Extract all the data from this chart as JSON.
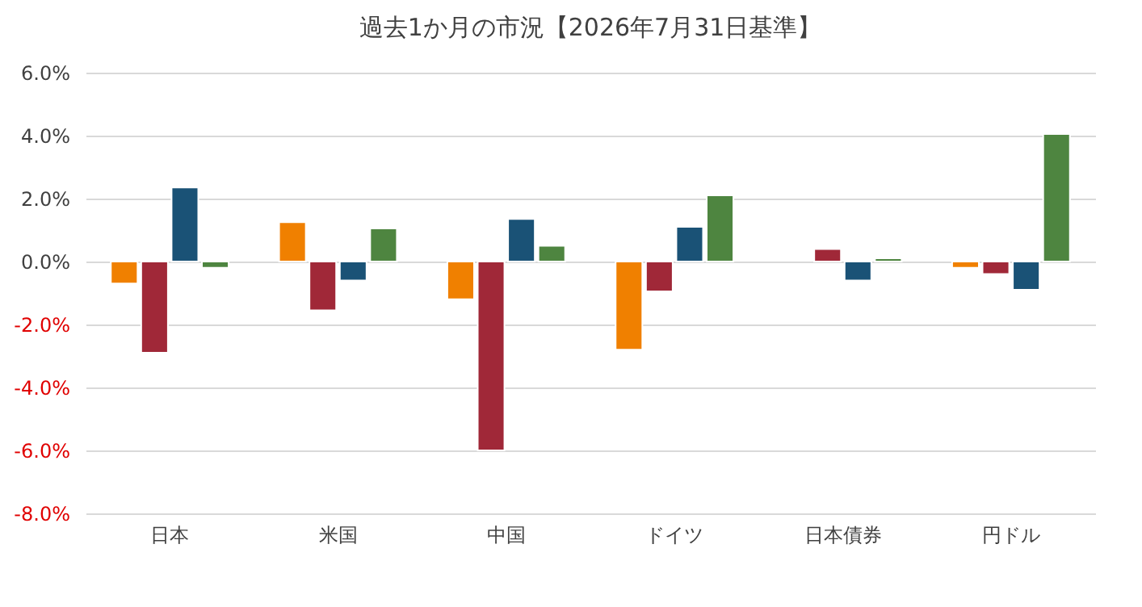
{
  "chart_data": {
    "type": "bar",
    "title": "過去1か月の市況【2026年7月31日基準】",
    "categories": [
      "日本",
      "米国",
      "中国",
      "ドイツ",
      "日本債券",
      "円ドル"
    ],
    "series": [
      {
        "color": "#f08000",
        "values": [
          -0.7,
          1.25,
          -1.2,
          -2.8,
          null,
          -0.2
        ]
      },
      {
        "color": "#a02838",
        "values": [
          -2.9,
          -1.55,
          -6.0,
          -0.95,
          0.4,
          -0.4
        ]
      },
      {
        "color": "#1a5276",
        "values": [
          2.35,
          -0.6,
          1.35,
          1.1,
          -0.6,
          -0.9
        ]
      },
      {
        "color": "#4e8540",
        "values": [
          -0.2,
          1.05,
          0.5,
          2.1,
          0.1,
          4.05
        ]
      }
    ],
    "ylim": [
      -8,
      6
    ],
    "yticks": [
      {
        "value": -8,
        "label": "-8.0%"
      },
      {
        "value": -6,
        "label": "-6.0%"
      },
      {
        "value": -4,
        "label": "-4.0%"
      },
      {
        "value": -2,
        "label": "-2.0%"
      },
      {
        "value": 0,
        "label": "0.0%"
      },
      {
        "value": 2,
        "label": "2.0%"
      },
      {
        "value": 4,
        "label": "4.0%"
      },
      {
        "value": 6,
        "label": "6.0%"
      }
    ],
    "grid": "y",
    "legend": false
  }
}
